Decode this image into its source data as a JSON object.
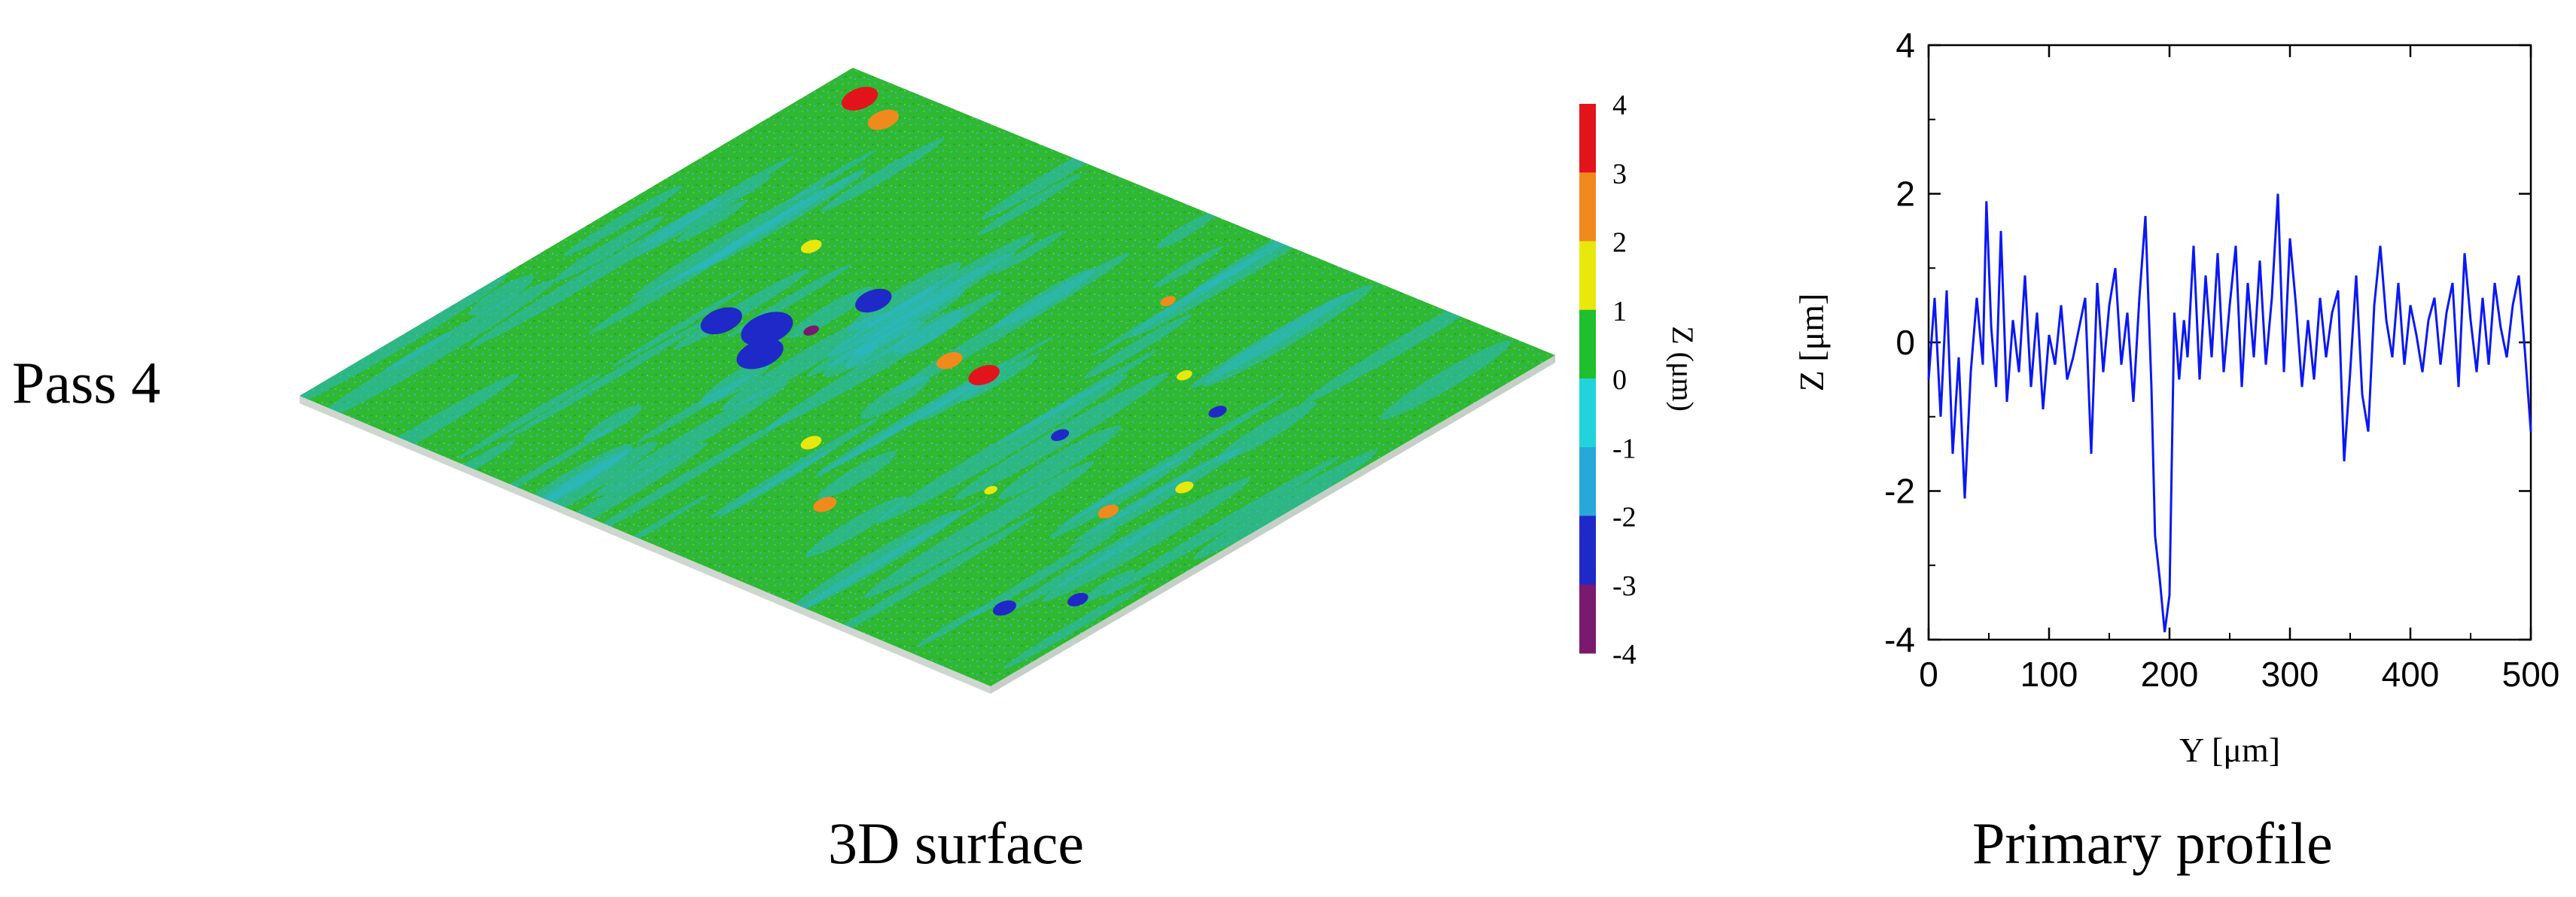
{
  "row_label": "Pass 4",
  "captions": {
    "surface": "3D surface",
    "profile": "Primary profile"
  },
  "colorbar": {
    "label": "Z (μm)",
    "ticks": [
      "4",
      "3",
      "2",
      "1",
      "0",
      "-1",
      "-2",
      "-3",
      "-4"
    ],
    "colors": [
      "#e3131c",
      "#f18a1d",
      "#e8e80c",
      "#1ec02d",
      "#21d4dc",
      "#27a8d9",
      "#1f29c8",
      "#7a1a6e"
    ]
  },
  "surface": {
    "base_color": "#29b72f",
    "secondary_color": "#2bb6c4"
  },
  "chart_data": {
    "type": "line",
    "xlabel": "Y [μm]",
    "ylabel": "Z [μm]",
    "xlim": [
      0,
      500
    ],
    "ylim": [
      -4,
      4
    ],
    "xticks": [
      "0",
      "100",
      "200",
      "300",
      "400",
      "500"
    ],
    "yticks": [
      "4",
      "2",
      "0",
      "-2",
      "-4"
    ],
    "line_color": "#0a18f5",
    "series": [
      {
        "x": [
          0,
          5,
          10,
          15,
          20,
          25,
          30,
          35,
          40,
          45,
          48,
          52,
          56,
          60,
          65,
          70,
          75,
          80,
          85,
          90,
          95,
          100,
          105,
          110,
          115,
          120,
          125,
          130,
          135,
          140,
          145,
          150,
          155,
          160,
          165,
          170,
          175,
          180,
          185,
          188,
          192,
          196,
          200,
          204,
          208,
          212,
          215,
          220,
          225,
          230,
          235,
          240,
          245,
          250,
          255,
          260,
          265,
          270,
          275,
          280,
          285,
          290,
          295,
          300,
          305,
          310,
          315,
          320,
          325,
          330,
          335,
          340,
          345,
          350,
          355,
          360,
          365,
          370,
          375,
          380,
          385,
          390,
          395,
          400,
          405,
          410,
          415,
          420,
          425,
          430,
          435,
          440,
          445,
          450,
          455,
          460,
          465,
          470,
          475,
          480,
          485,
          490,
          495,
          500
        ],
        "y": [
          -0.5,
          0.6,
          -1.0,
          0.7,
          -1.5,
          -0.2,
          -2.1,
          -0.4,
          0.6,
          -0.3,
          1.9,
          0.2,
          -0.6,
          1.5,
          -0.8,
          0.3,
          -0.4,
          0.9,
          -0.6,
          0.4,
          -0.9,
          0.1,
          -0.3,
          0.5,
          -0.5,
          -0.2,
          0.2,
          0.6,
          -1.5,
          0.8,
          -0.4,
          0.5,
          1.0,
          -0.3,
          0.4,
          -0.8,
          0.6,
          1.7,
          -0.6,
          -2.6,
          -3.2,
          -3.9,
          -3.4,
          0.4,
          -0.5,
          0.3,
          -0.2,
          1.3,
          -0.5,
          0.9,
          -0.2,
          1.2,
          -0.4,
          0.5,
          1.3,
          -0.6,
          0.8,
          -0.2,
          1.1,
          -0.3,
          0.6,
          2.0,
          -0.4,
          1.4,
          0.5,
          -0.6,
          0.3,
          -0.5,
          0.6,
          -0.2,
          0.4,
          0.7,
          -1.6,
          -0.4,
          0.9,
          -0.7,
          -1.2,
          0.5,
          1.3,
          0.3,
          -0.2,
          0.8,
          -0.3,
          0.5,
          0.1,
          -0.4,
          0.3,
          0.6,
          -0.3,
          0.4,
          0.8,
          -0.6,
          1.2,
          0.3,
          -0.4,
          0.6,
          -0.3,
          0.8,
          0.2,
          -0.2,
          0.5,
          0.9,
          -0.1,
          -1.2
        ]
      }
    ],
    "grid": false
  }
}
